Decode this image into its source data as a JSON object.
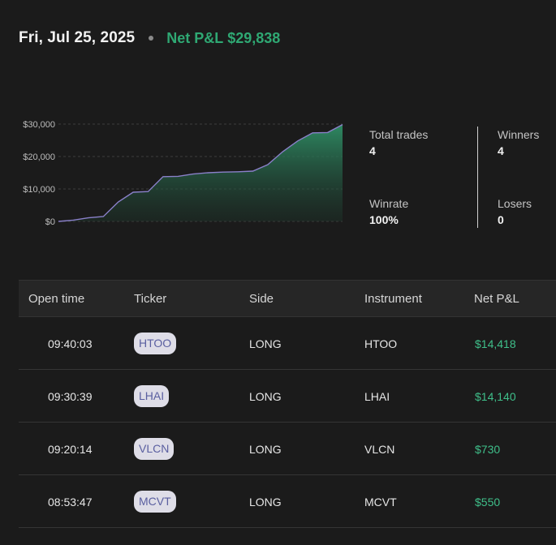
{
  "header": {
    "date": "Fri, Jul 25, 2025",
    "pnl_label": "Net P&L",
    "pnl_value": "$29,838",
    "positive_color": "#2fa873"
  },
  "chart_data": {
    "type": "area",
    "title": "",
    "xlabel": "",
    "ylabel": "",
    "ylim": [
      0,
      30000
    ],
    "yticks": [
      "$30,000",
      "$20,000",
      "$10,000",
      "$0"
    ],
    "ytick_values": [
      30000,
      20000,
      10000,
      0
    ],
    "grid": true,
    "series": [
      {
        "values": [
          0,
          400,
          1100,
          1500,
          6000,
          9000,
          9200,
          13800,
          13900,
          14600,
          15000,
          15200,
          15300,
          15500,
          17500,
          21500,
          24800,
          27300,
          27400,
          29838
        ]
      }
    ],
    "line_color": "#8a80c9",
    "fill_color": "#2f8f66"
  },
  "stats": {
    "total_trades_label": "Total trades",
    "total_trades_value": "4",
    "winrate_label": "Winrate",
    "winrate_value": "100%",
    "winners_label": "Winners",
    "winners_value": "4",
    "losers_label": "Losers",
    "losers_value": "0"
  },
  "table": {
    "columns": [
      "Open time",
      "Ticker",
      "Side",
      "Instrument",
      "Net P&L"
    ],
    "rows": [
      {
        "time": "09:40:03",
        "ticker": "HTOO",
        "side": "LONG",
        "instrument": "HTOO",
        "pnl": "$14,418"
      },
      {
        "time": "09:30:39",
        "ticker": "LHAI",
        "side": "LONG",
        "instrument": "LHAI",
        "pnl": "$14,140"
      },
      {
        "time": "09:20:14",
        "ticker": "VLCN",
        "side": "LONG",
        "instrument": "VLCN",
        "pnl": "$730"
      },
      {
        "time": "08:53:47",
        "ticker": "MCVT",
        "side": "LONG",
        "instrument": "MCVT",
        "pnl": "$550"
      }
    ]
  }
}
